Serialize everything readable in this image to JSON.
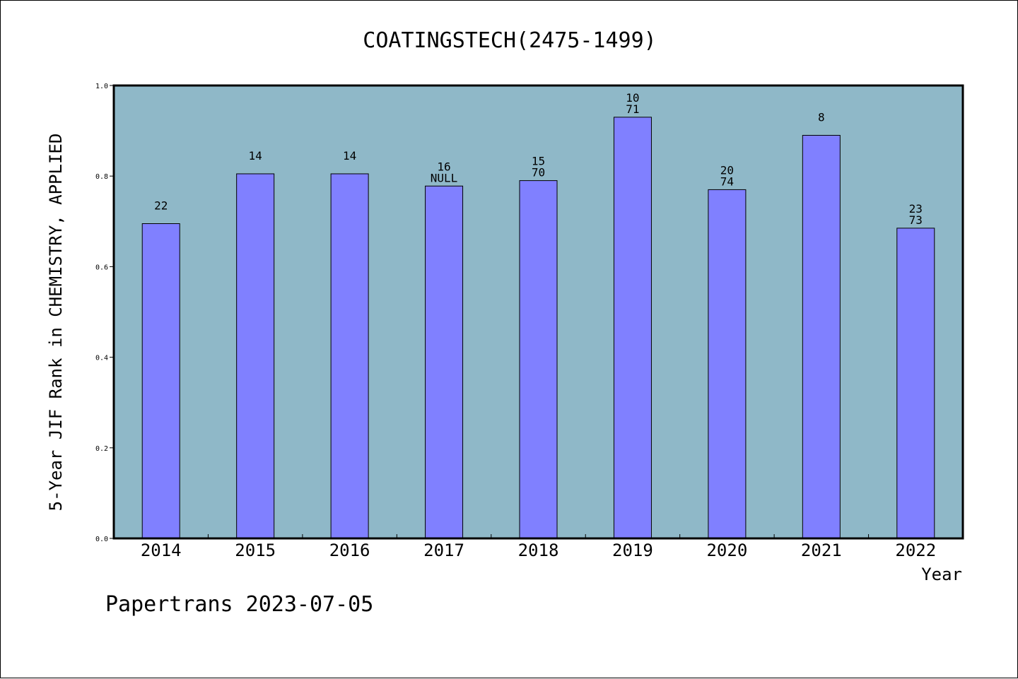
{
  "chart_data": {
    "type": "bar",
    "title": "COATINGSTECH(2475-1499)",
    "xlabel": "Year",
    "ylabel": "5-Year JIF Rank in CHEMISTRY, APPLIED",
    "ylim": [
      0.0,
      1.0
    ],
    "yticks": [
      "0.0",
      "0.2",
      "0.4",
      "0.6",
      "0.8",
      "1.0"
    ],
    "grid": false,
    "colors": {
      "plot_background": "#8fb8c8",
      "bar_fill": "#8080ff",
      "bar_edge": "#000000"
    },
    "categories": [
      "2014",
      "2015",
      "2016",
      "2017",
      "2018",
      "2019",
      "2020",
      "2021",
      "2022"
    ],
    "values": [
      0.695,
      0.805,
      0.805,
      0.778,
      0.79,
      0.93,
      0.77,
      0.89,
      0.685
    ],
    "bar_labels": [
      {
        "top": "22",
        "bottom": ""
      },
      {
        "top": "14",
        "bottom": ""
      },
      {
        "top": "14",
        "bottom": ""
      },
      {
        "top": "16",
        "bottom": "NULL"
      },
      {
        "top": "15",
        "bottom": "70"
      },
      {
        "top": "10",
        "bottom": "71"
      },
      {
        "top": "20",
        "bottom": "74"
      },
      {
        "top": "8",
        "bottom": ""
      },
      {
        "top": "23",
        "bottom": "73"
      }
    ]
  },
  "footer": "Papertrans 2023-07-05"
}
